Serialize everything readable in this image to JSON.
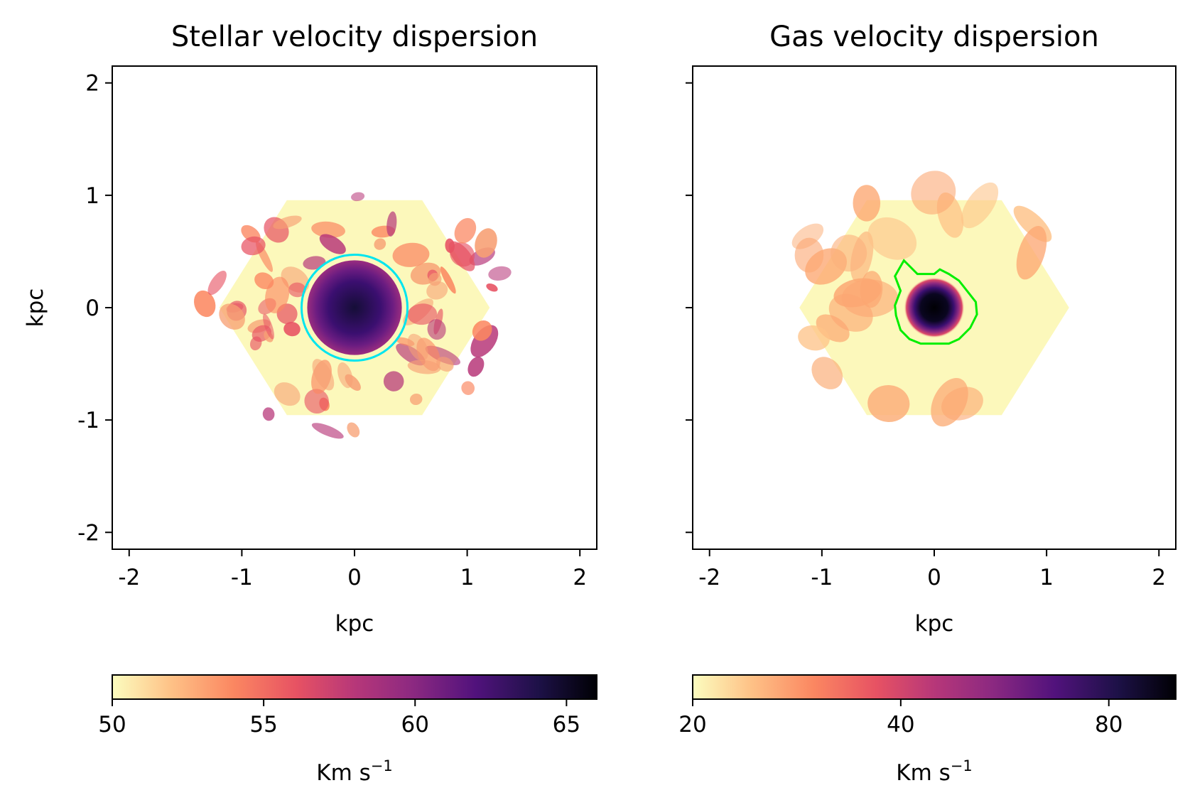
{
  "chart_data": [
    {
      "type": "heatmap",
      "title": "Stellar velocity dispersion",
      "xlabel": "kpc",
      "ylabel": "kpc",
      "xlim": [
        -2.15,
        2.15
      ],
      "ylim": [
        -2.15,
        2.15
      ],
      "xticks": [
        -2,
        -1,
        0,
        1,
        2
      ],
      "yticks": [
        -2,
        -1,
        0,
        1,
        2
      ],
      "xtick_labels": [
        "-2",
        "-1",
        "0",
        "1",
        "2"
      ],
      "ytick_labels": [
        "-2",
        "-1",
        "0",
        "1",
        "2"
      ],
      "hexagon_extent_kpc": 1.2,
      "colorbar": {
        "colormap": "magma_r",
        "range": [
          50,
          66
        ],
        "scale": "linear",
        "ticks": [
          50,
          55,
          60,
          65
        ],
        "tick_labels": [
          "50",
          "55",
          "60",
          "65"
        ],
        "label_base": "Km s",
        "label_exp": "−1"
      },
      "overlay": {
        "shape": "circle",
        "center": [
          0,
          0
        ],
        "radius_kpc": 0.47,
        "color": "#00e5ee"
      }
    },
    {
      "type": "heatmap",
      "title": "Gas velocity dispersion",
      "xlabel": "kpc",
      "ylabel": "",
      "xlim": [
        -2.15,
        2.15
      ],
      "ylim": [
        -2.15,
        2.15
      ],
      "xticks": [
        -2,
        -1,
        0,
        1,
        2
      ],
      "yticks": [
        -2,
        -1,
        0,
        1,
        2
      ],
      "xtick_labels": [
        "-2",
        "-1",
        "0",
        "1",
        "2"
      ],
      "ytick_labels": [],
      "hexagon_extent_kpc": 1.2,
      "colorbar": {
        "colormap": "magma_r",
        "range": [
          20,
          100
        ],
        "scale": "log",
        "ticks": [
          20,
          40,
          80
        ],
        "tick_labels": [
          "20",
          "40",
          "80"
        ],
        "label_base": "Km s",
        "label_exp": "−1"
      },
      "overlay": {
        "shape": "contour",
        "color": "#00ee00",
        "points": [
          [
            -0.35,
            0.28
          ],
          [
            -0.27,
            0.42
          ],
          [
            -0.2,
            0.35
          ],
          [
            -0.15,
            0.3
          ],
          [
            0.0,
            0.3
          ],
          [
            0.05,
            0.34
          ],
          [
            0.13,
            0.3
          ],
          [
            0.22,
            0.24
          ],
          [
            0.3,
            0.14
          ],
          [
            0.37,
            0.05
          ],
          [
            0.38,
            -0.06
          ],
          [
            0.32,
            -0.18
          ],
          [
            0.22,
            -0.28
          ],
          [
            0.13,
            -0.32
          ],
          [
            -0.12,
            -0.32
          ],
          [
            -0.22,
            -0.28
          ],
          [
            -0.3,
            -0.2
          ],
          [
            -0.34,
            -0.07
          ],
          [
            -0.35,
            0.02
          ],
          [
            -0.3,
            0.15
          ],
          [
            -0.35,
            0.28
          ]
        ]
      }
    }
  ]
}
